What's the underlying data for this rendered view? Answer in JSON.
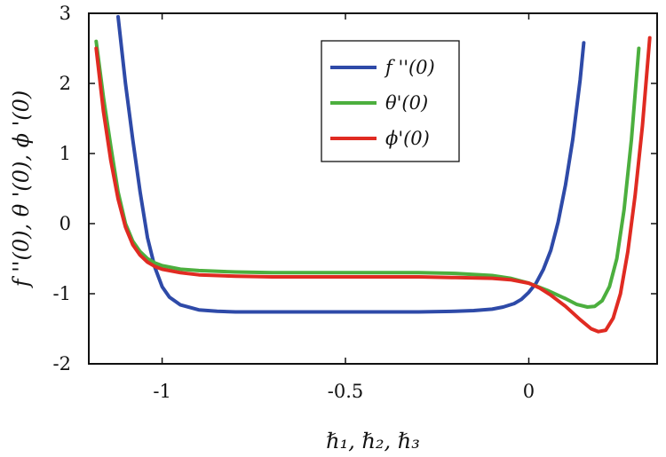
{
  "chart_data": {
    "type": "line",
    "xlabel": "ℏ₁, ℏ₂, ℏ₃",
    "ylabel": "f ''(0), θ '(0), ϕ '(0)",
    "xlim": [
      -1.2,
      0.35
    ],
    "ylim": [
      -2,
      3
    ],
    "xticks": [
      -1,
      -0.5,
      0
    ],
    "xtick_labels": [
      "-1",
      "-0.5",
      "0"
    ],
    "yticks": [
      -2,
      -1,
      0,
      1,
      2,
      3
    ],
    "ytick_labels": [
      "-2",
      "-1",
      "0",
      "1",
      "2",
      "3"
    ],
    "grid": false,
    "legend_position": "top-right",
    "series": [
      {
        "name": "f ''(0)",
        "color": "#2e4aa8",
        "x": [
          -1.12,
          -1.1,
          -1.08,
          -1.06,
          -1.04,
          -1.02,
          -1.0,
          -0.98,
          -0.95,
          -0.9,
          -0.85,
          -0.8,
          -0.7,
          -0.6,
          -0.5,
          -0.4,
          -0.3,
          -0.2,
          -0.15,
          -0.1,
          -0.07,
          -0.04,
          -0.02,
          0.0,
          0.02,
          0.04,
          0.06,
          0.08,
          0.1,
          0.12,
          0.14,
          0.15
        ],
        "values": [
          2.95,
          2.0,
          1.2,
          0.45,
          -0.2,
          -0.62,
          -0.9,
          -1.05,
          -1.16,
          -1.23,
          -1.25,
          -1.26,
          -1.26,
          -1.26,
          -1.26,
          -1.26,
          -1.26,
          -1.25,
          -1.24,
          -1.22,
          -1.19,
          -1.14,
          -1.08,
          -0.98,
          -0.85,
          -0.65,
          -0.38,
          0.02,
          0.55,
          1.2,
          2.05,
          2.58
        ]
      },
      {
        "name": "θ'(0)",
        "color": "#4caf3e",
        "x": [
          -1.18,
          -1.16,
          -1.14,
          -1.12,
          -1.1,
          -1.08,
          -1.06,
          -1.04,
          -1.02,
          -1.0,
          -0.95,
          -0.9,
          -0.8,
          -0.7,
          -0.6,
          -0.5,
          -0.4,
          -0.3,
          -0.2,
          -0.1,
          -0.05,
          0.0,
          0.05,
          0.1,
          0.13,
          0.16,
          0.18,
          0.2,
          0.22,
          0.24,
          0.26,
          0.28,
          0.3
        ],
        "values": [
          2.6,
          1.8,
          1.1,
          0.45,
          0.0,
          -0.25,
          -0.4,
          -0.5,
          -0.56,
          -0.6,
          -0.65,
          -0.67,
          -0.69,
          -0.7,
          -0.7,
          -0.7,
          -0.7,
          -0.7,
          -0.71,
          -0.74,
          -0.78,
          -0.85,
          -0.95,
          -1.07,
          -1.15,
          -1.19,
          -1.18,
          -1.1,
          -0.9,
          -0.5,
          0.2,
          1.2,
          2.5
        ]
      },
      {
        "name": "ϕ'(0)",
        "color": "#e02b22",
        "x": [
          -1.18,
          -1.16,
          -1.14,
          -1.12,
          -1.1,
          -1.08,
          -1.06,
          -1.04,
          -1.02,
          -1.0,
          -0.95,
          -0.9,
          -0.8,
          -0.7,
          -0.6,
          -0.5,
          -0.4,
          -0.3,
          -0.2,
          -0.1,
          -0.05,
          0.0,
          0.03,
          0.06,
          0.1,
          0.14,
          0.17,
          0.19,
          0.21,
          0.23,
          0.25,
          0.27,
          0.29,
          0.31,
          0.33
        ],
        "values": [
          2.5,
          1.6,
          0.9,
          0.35,
          -0.05,
          -0.3,
          -0.45,
          -0.55,
          -0.61,
          -0.65,
          -0.7,
          -0.73,
          -0.75,
          -0.76,
          -0.76,
          -0.76,
          -0.76,
          -0.76,
          -0.77,
          -0.78,
          -0.8,
          -0.85,
          -0.92,
          -1.02,
          -1.18,
          -1.37,
          -1.5,
          -1.54,
          -1.52,
          -1.35,
          -1.0,
          -0.4,
          0.4,
          1.4,
          2.65
        ]
      }
    ]
  }
}
